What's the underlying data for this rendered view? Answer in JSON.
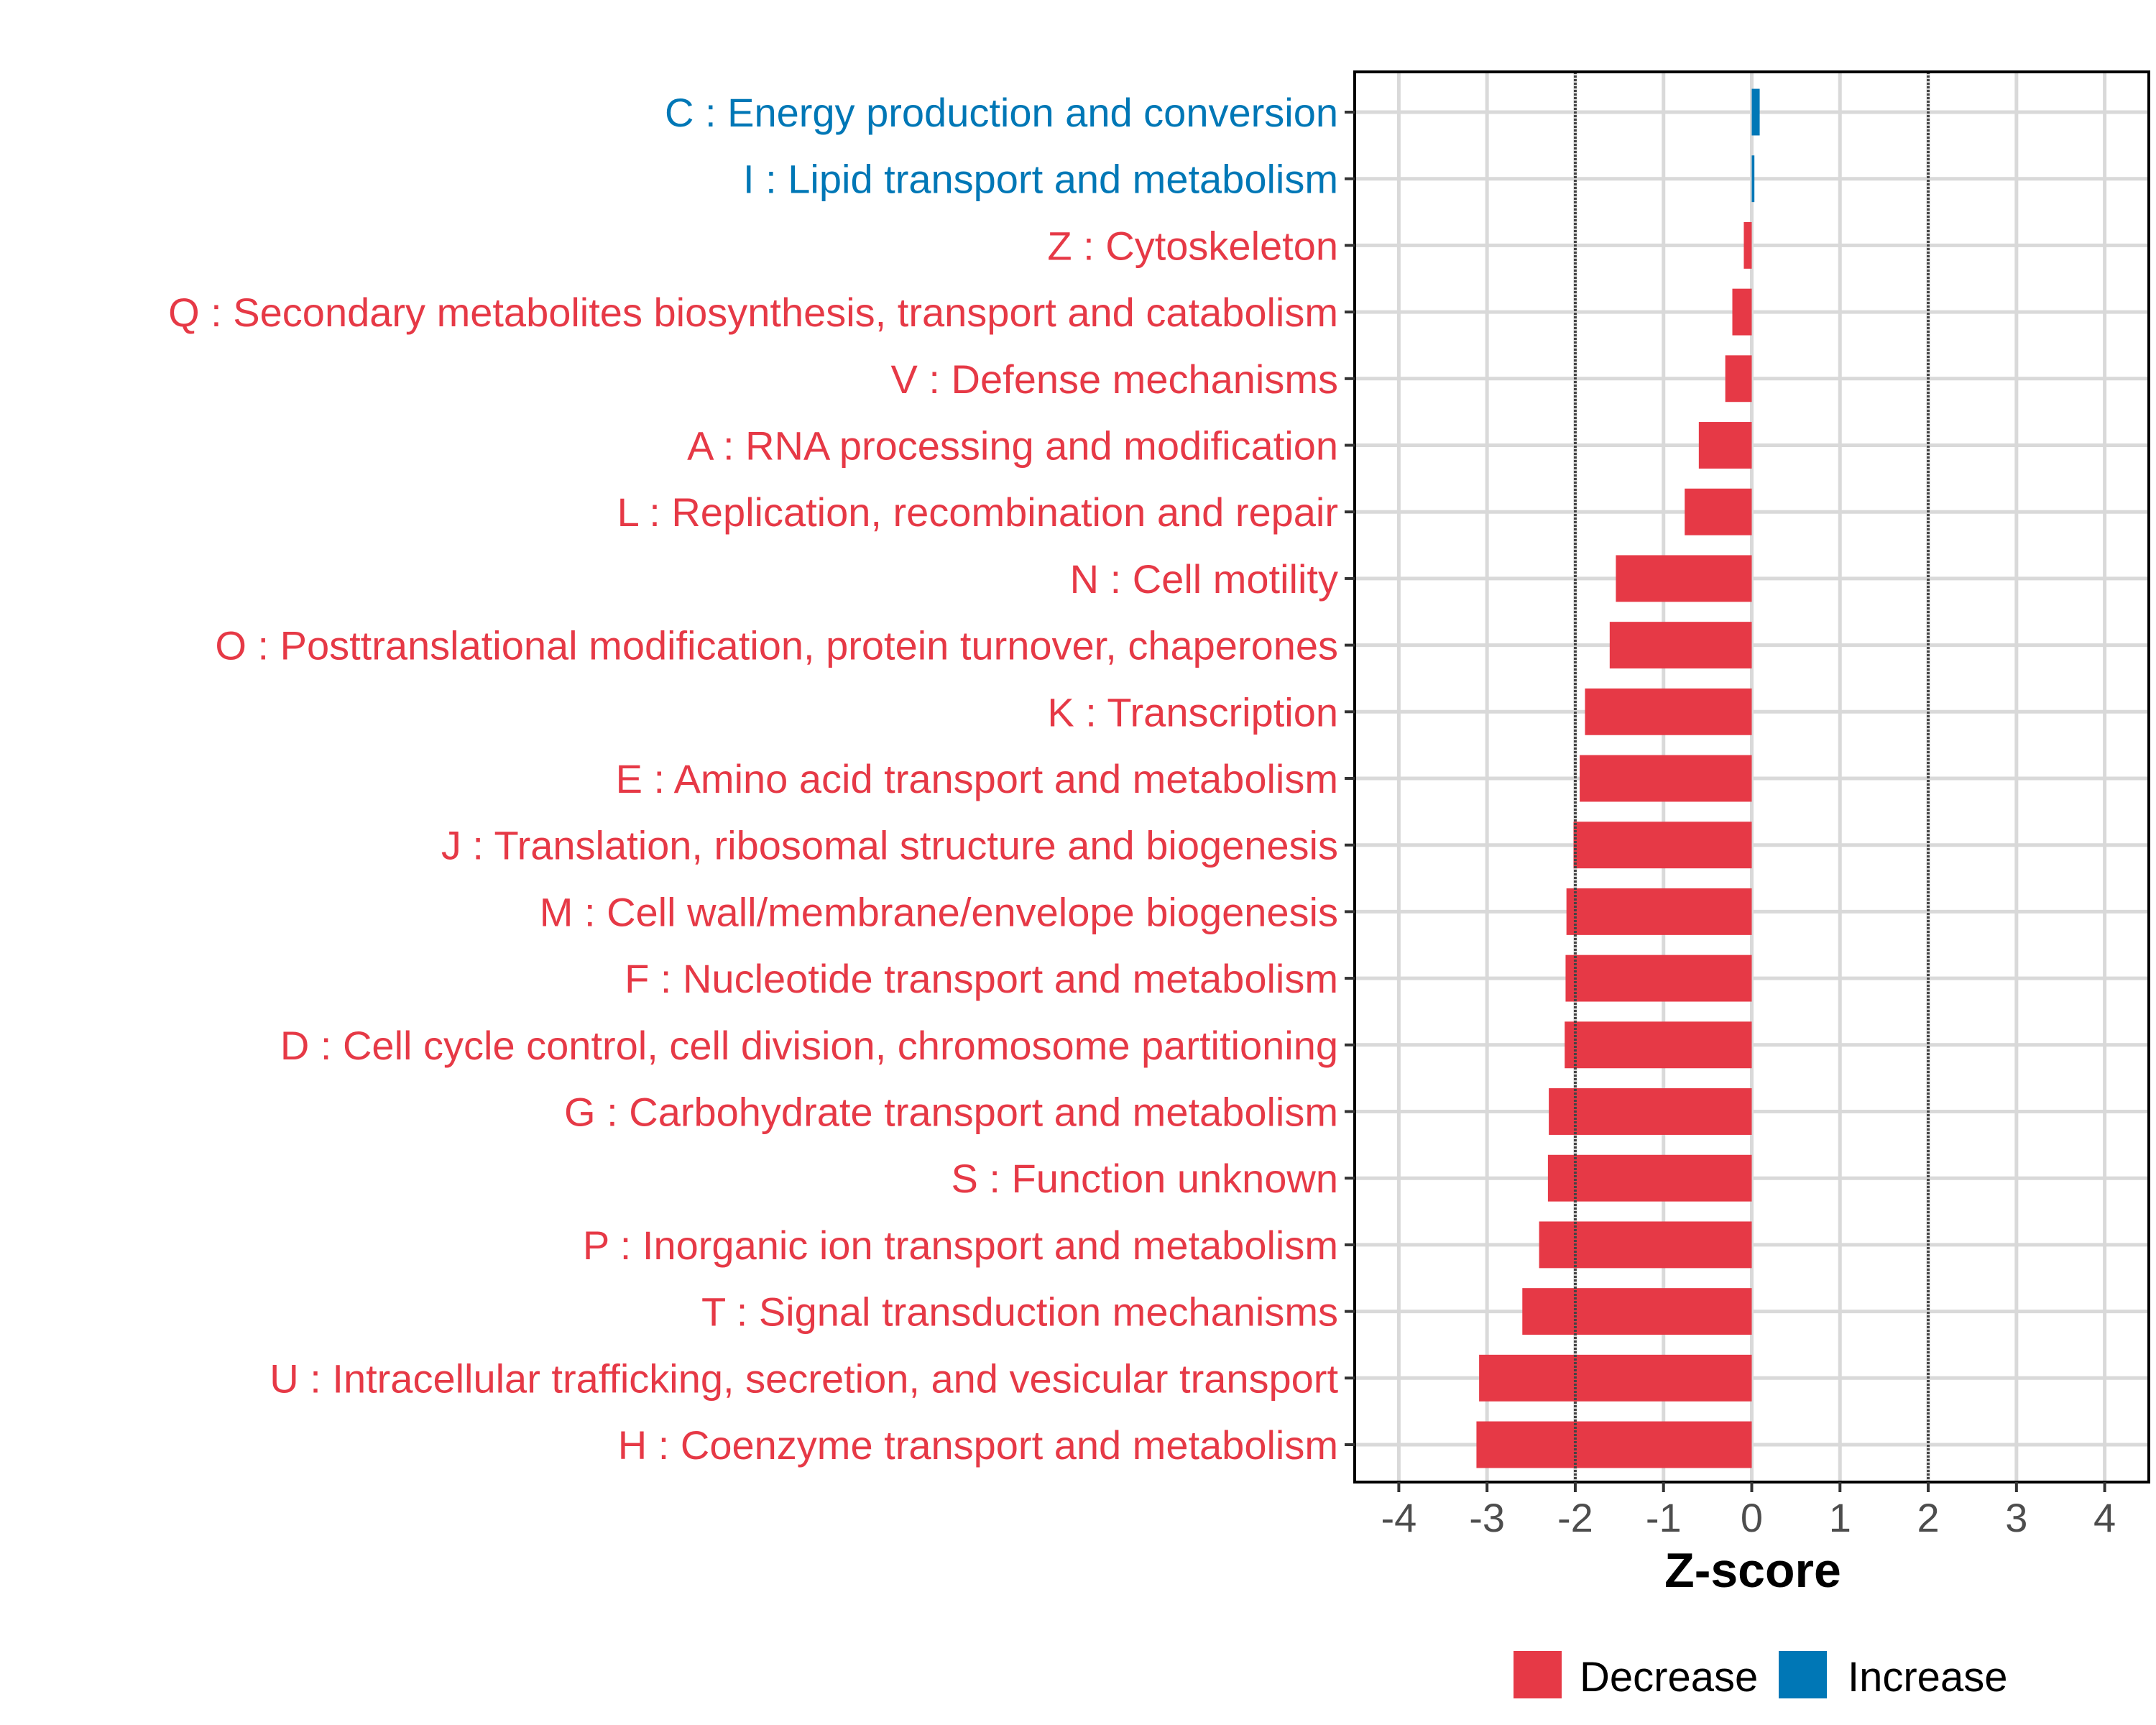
{
  "chart_data": {
    "type": "bar",
    "orientation": "horizontal",
    "title": "",
    "xlabel": "Z-score",
    "ylabel": "",
    "xlim": [
      -4.5,
      4.5
    ],
    "xticks": [
      -4,
      -3,
      -2,
      -1,
      0,
      1,
      2,
      3,
      4
    ],
    "reference_lines": [
      -2,
      2
    ],
    "grid": true,
    "legend_position": "bottom",
    "legend": [
      {
        "label": "Decrease",
        "color": "#E63946"
      },
      {
        "label": "Increase",
        "color": "#0077B6"
      }
    ],
    "categories": [
      "C : Energy production and conversion",
      "I : Lipid transport and metabolism",
      "Z : Cytoskeleton",
      "Q : Secondary metabolites biosynthesis, transport and catabolism",
      "V : Defense mechanisms",
      "A : RNA processing and modification",
      "L : Replication, recombination and repair",
      "N : Cell motility",
      "O : Posttranslational modification, protein turnover, chaperones",
      "K : Transcription",
      "E : Amino acid transport and metabolism",
      "J : Translation, ribosomal structure and biogenesis",
      "M : Cell wall/membrane/envelope biogenesis",
      "F : Nucleotide transport and metabolism",
      "D : Cell cycle control, cell division, chromosome partitioning",
      "G : Carbohydrate transport and metabolism",
      "S : Function unknown",
      "P : Inorganic ion transport and metabolism",
      "T : Signal transduction mechanisms",
      "U : Intracellular trafficking, secretion, and vesicular transport",
      "H : Coenzyme transport and metabolism"
    ],
    "values": [
      0.09,
      0.03,
      -0.09,
      -0.22,
      -0.3,
      -0.6,
      -0.76,
      -1.54,
      -1.61,
      -1.89,
      -1.95,
      -2.02,
      -2.1,
      -2.11,
      -2.12,
      -2.3,
      -2.31,
      -2.41,
      -2.6,
      -3.09,
      -3.12
    ],
    "groups": [
      "Increase",
      "Increase",
      "Decrease",
      "Decrease",
      "Decrease",
      "Decrease",
      "Decrease",
      "Decrease",
      "Decrease",
      "Decrease",
      "Decrease",
      "Decrease",
      "Decrease",
      "Decrease",
      "Decrease",
      "Decrease",
      "Decrease",
      "Decrease",
      "Decrease",
      "Decrease",
      "Decrease"
    ]
  }
}
